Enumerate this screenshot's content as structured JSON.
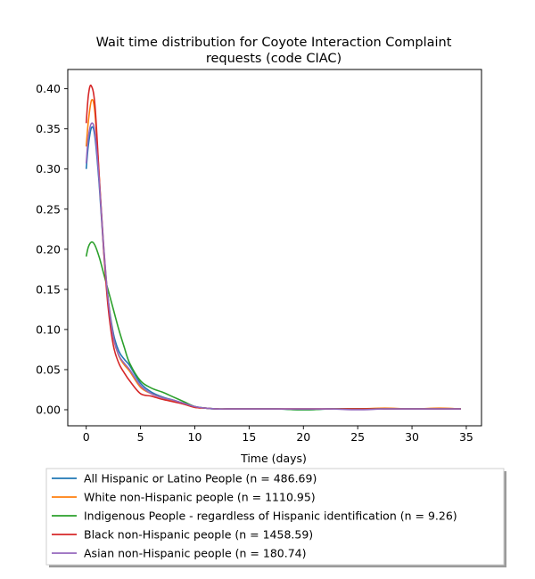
{
  "chart_data": {
    "type": "line",
    "title_line1": "Wait time distribution  for Coyote Interaction Complaint",
    "title_line2": "requests (code CIAC)",
    "xlabel": "Time (days)",
    "ylabel": "",
    "xlim": [
      -1.7,
      36.4
    ],
    "ylim": [
      -0.02,
      0.424
    ],
    "x_ticks": [
      0,
      5,
      10,
      15,
      20,
      25,
      30,
      35
    ],
    "y_ticks": [
      0.0,
      0.05,
      0.1,
      0.15,
      0.2,
      0.25,
      0.3,
      0.35,
      0.4
    ],
    "grid": false,
    "legend_position": "below-plot",
    "series": [
      {
        "name": "All Hispanic or Latino People (n = 486.69)",
        "color": "#1f77b4",
        "x": [
          0,
          0.2,
          0.5,
          0.8,
          1.2,
          1.6,
          2,
          2.5,
          3,
          3.5,
          4,
          5,
          6,
          7,
          8,
          9,
          10,
          11,
          12,
          13,
          15,
          17.5,
          20,
          22.5,
          25,
          27.5,
          30,
          32.5,
          34.5
        ],
        "values": [
          0.3,
          0.33,
          0.352,
          0.34,
          0.28,
          0.2,
          0.14,
          0.095,
          0.073,
          0.063,
          0.055,
          0.033,
          0.022,
          0.016,
          0.012,
          0.008,
          0.004,
          0.002,
          0.001,
          0.001,
          0.001,
          0.001,
          0.0,
          0.001,
          0.001,
          0.001,
          0.001,
          0.001,
          0.001
        ]
      },
      {
        "name": "White non-Hispanic people (n = 1110.95)",
        "color": "#ff7f0e",
        "x": [
          0,
          0.2,
          0.5,
          0.8,
          1.2,
          1.6,
          2,
          2.5,
          3,
          3.5,
          4,
          5,
          6,
          7,
          8,
          9,
          10,
          11,
          12,
          13,
          15,
          17.5,
          20,
          22.5,
          25,
          27.5,
          30,
          32.5,
          34.5
        ],
        "values": [
          0.328,
          0.36,
          0.386,
          0.37,
          0.29,
          0.205,
          0.14,
          0.09,
          0.067,
          0.056,
          0.048,
          0.028,
          0.02,
          0.015,
          0.011,
          0.007,
          0.003,
          0.002,
          0.001,
          0.001,
          0.001,
          0.001,
          0.001,
          0.001,
          0.001,
          0.002,
          0.001,
          0.002,
          0.001
        ]
      },
      {
        "name": "Indigenous People - regardless of Hispanic identification (n = 9.26)",
        "color": "#2ca02c",
        "x": [
          0,
          0.2,
          0.5,
          0.8,
          1.2,
          1.6,
          2,
          2.5,
          3,
          3.5,
          4,
          5,
          6,
          7,
          8,
          9,
          10,
          11,
          12,
          13,
          15,
          17.5,
          20,
          22.5,
          25,
          27.5,
          30,
          32.5,
          34.5
        ],
        "values": [
          0.191,
          0.203,
          0.209,
          0.205,
          0.19,
          0.17,
          0.15,
          0.125,
          0.1,
          0.078,
          0.058,
          0.036,
          0.027,
          0.022,
          0.016,
          0.01,
          0.004,
          0.002,
          0.001,
          0.001,
          0.001,
          0.001,
          0.0,
          0.001,
          0.001,
          0.001,
          0.001,
          0.001,
          0.001
        ]
      },
      {
        "name": "Black non-Hispanic people (n = 1458.59)",
        "color": "#d62728",
        "x": [
          0,
          0.2,
          0.45,
          0.8,
          1.2,
          1.6,
          2,
          2.5,
          3,
          3.5,
          4,
          5,
          6,
          7,
          8,
          9,
          10,
          11,
          12,
          13,
          15,
          17.5,
          20,
          22.5,
          25,
          27.5,
          30,
          32.5,
          34.5
        ],
        "values": [
          0.357,
          0.392,
          0.404,
          0.38,
          0.29,
          0.2,
          0.13,
          0.08,
          0.058,
          0.046,
          0.036,
          0.02,
          0.017,
          0.013,
          0.01,
          0.007,
          0.003,
          0.002,
          0.001,
          0.001,
          0.001,
          0.001,
          0.001,
          0.001,
          0.001,
          0.001,
          0.001,
          0.001,
          0.001
        ]
      },
      {
        "name": "Asian non-Hispanic people (n = 180.74)",
        "color": "#9467bd",
        "x": [
          0,
          0.2,
          0.5,
          0.8,
          1.2,
          1.6,
          2,
          2.5,
          3,
          3.5,
          4,
          5,
          6,
          7,
          8,
          9,
          10,
          11,
          12,
          13,
          15,
          17.5,
          20,
          22.5,
          25,
          27.5,
          30,
          32.5,
          34.5
        ],
        "values": [
          0.307,
          0.34,
          0.357,
          0.345,
          0.285,
          0.205,
          0.14,
          0.09,
          0.068,
          0.058,
          0.05,
          0.03,
          0.02,
          0.015,
          0.012,
          0.008,
          0.004,
          0.002,
          0.001,
          0.001,
          0.001,
          0.001,
          0.001,
          0.001,
          0.0,
          0.001,
          0.001,
          0.001,
          0.001
        ]
      }
    ]
  }
}
